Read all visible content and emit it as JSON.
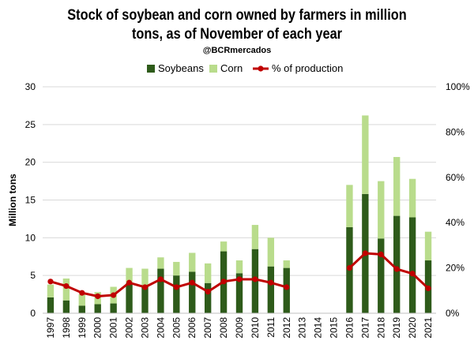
{
  "chart_data": {
    "type": "bar",
    "stacked": true,
    "title_line1": "Stock of soybean and corn owned by farmers in million",
    "title_line2": "tons, as of November of each year",
    "subtitle": "@BCRmercados",
    "ylabel": "Million tons",
    "ylim": [
      0,
      30
    ],
    "yticks": [
      "0",
      "5",
      "10",
      "15",
      "20",
      "25",
      "30"
    ],
    "y2lim": [
      0,
      100
    ],
    "y2ticks": [
      "0%",
      "20%",
      "40%",
      "60%",
      "80%",
      "100%"
    ],
    "grid": true,
    "legend_position": "top",
    "categories": [
      "1997",
      "1998",
      "1999",
      "2000",
      "2001",
      "2002",
      "2003",
      "2004",
      "2005",
      "2006",
      "2007",
      "2008",
      "2009",
      "2010",
      "2011",
      "2012",
      "2013",
      "2014",
      "2015",
      "2016",
      "2017",
      "2018",
      "2019",
      "2020",
      "2021"
    ],
    "series": [
      {
        "name": "Soybeans",
        "kind": "bar",
        "color": "#2e5b1a",
        "values": [
          2.1,
          1.7,
          1.0,
          1.2,
          1.3,
          4.0,
          3.6,
          5.9,
          5.0,
          5.5,
          4.0,
          8.2,
          5.3,
          8.5,
          6.2,
          6.0,
          null,
          null,
          null,
          11.4,
          15.8,
          9.9,
          12.9,
          12.7,
          7.0
        ]
      },
      {
        "name": "Corn",
        "kind": "bar",
        "color": "#b9dc8c",
        "values": [
          1.7,
          2.9,
          1.5,
          1.6,
          2.2,
          2.0,
          2.3,
          1.5,
          1.8,
          2.5,
          2.6,
          1.3,
          1.7,
          3.2,
          3.8,
          1.0,
          null,
          null,
          null,
          5.6,
          10.4,
          7.6,
          7.8,
          5.1,
          3.8
        ]
      },
      {
        "name": "% of production",
        "kind": "line",
        "color": "#c00000",
        "axis": "right",
        "values": [
          14,
          12,
          9,
          7.5,
          8,
          13.5,
          11.5,
          15,
          11.5,
          13.5,
          9.5,
          14,
          15,
          15,
          13.5,
          11.5,
          null,
          null,
          null,
          20,
          26.5,
          26,
          19.5,
          17.5,
          11
        ]
      }
    ]
  }
}
